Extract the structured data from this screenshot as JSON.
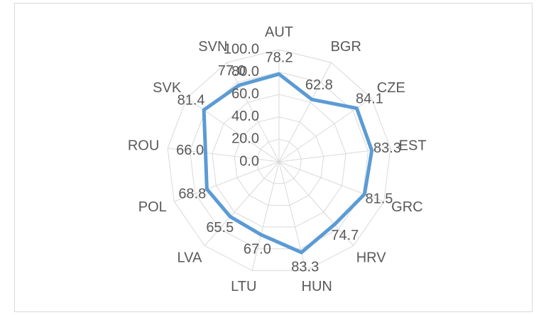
{
  "chart_data": {
    "type": "radar",
    "categories": [
      "AUT",
      "BGR",
      "CZE",
      "EST",
      "GRC",
      "HRV",
      "HUN",
      "LTU",
      "LVA",
      "POL",
      "ROU",
      "SVK",
      "SVN"
    ],
    "series": [
      {
        "color": "#5b9bd5",
        "values": [
          78.2,
          62.8,
          84.1,
          83.3,
          81.5,
          74.7,
          83.3,
          67.0,
          65.5,
          68.8,
          66.0,
          81.4,
          77.0
        ],
        "value_labels": [
          "78.2",
          "62.8",
          "84.1",
          "83.3",
          "81.5",
          "74.7",
          "83.3",
          "67.0",
          "65.5",
          "68.8",
          "66.0",
          "81.4",
          "77.0"
        ]
      }
    ],
    "ylim": [
      0,
      100
    ],
    "yticks": [
      {
        "value": 0,
        "label": "0.0"
      },
      {
        "value": 20,
        "label": "20.0"
      },
      {
        "value": 40,
        "label": "40.0"
      },
      {
        "value": 60,
        "label": "60.0"
      },
      {
        "value": 80,
        "label": "80.0"
      },
      {
        "value": 100,
        "label": "100.0"
      }
    ],
    "grid": true
  }
}
